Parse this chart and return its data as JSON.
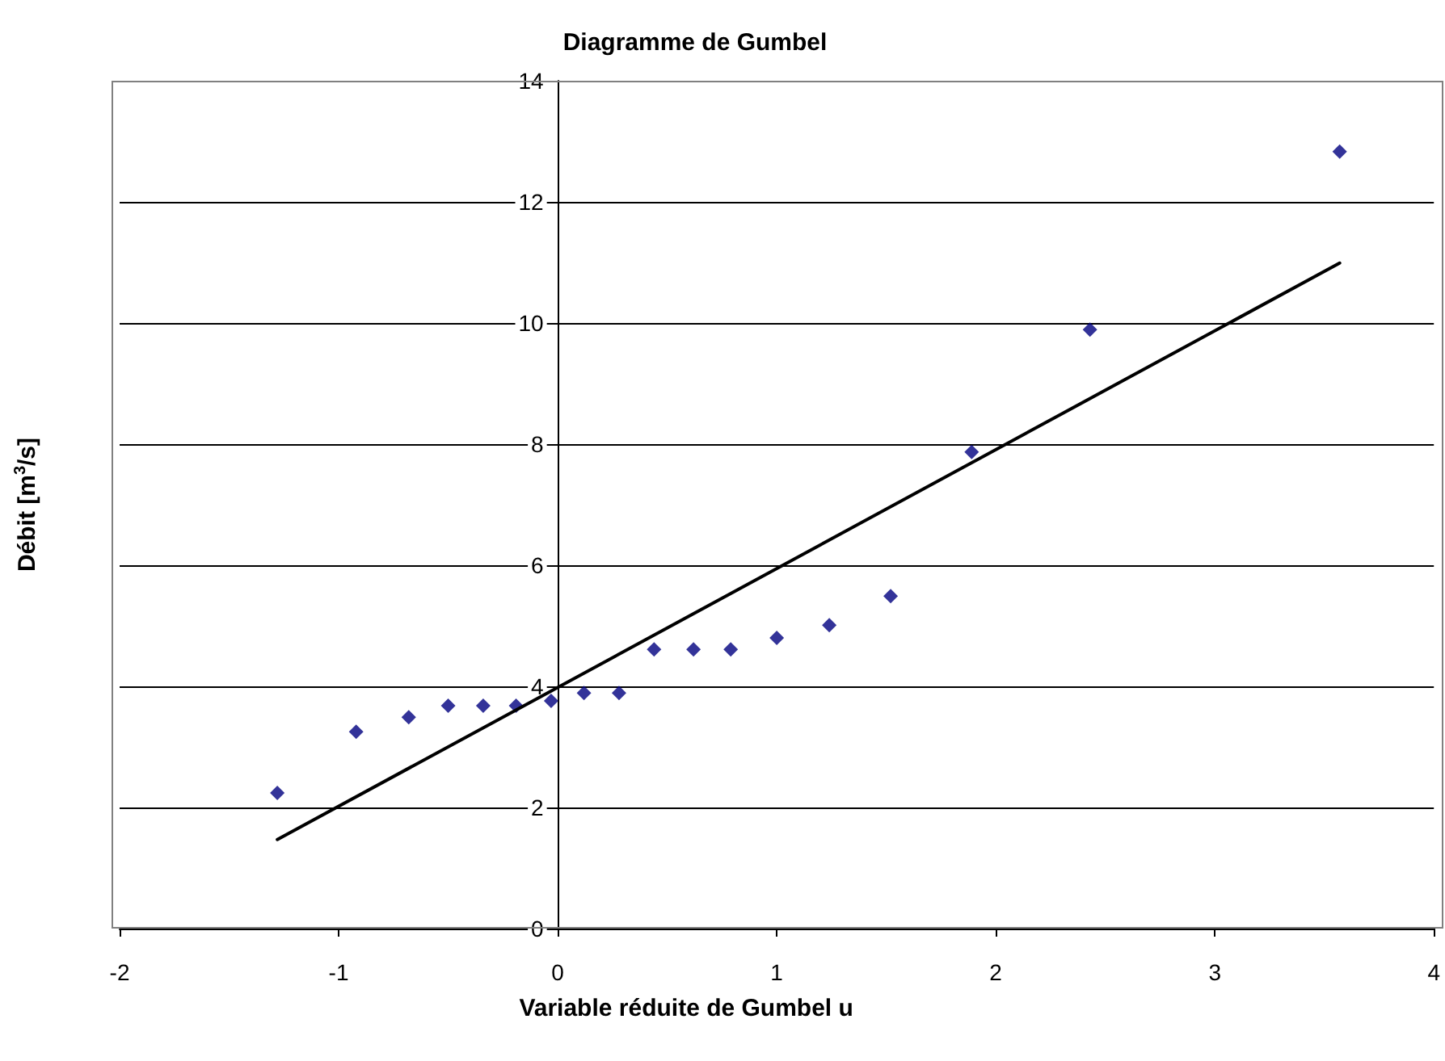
{
  "chart_data": {
    "type": "scatter",
    "title": "Diagramme de Gumbel",
    "xlabel": "Variable réduite de Gumbel u",
    "ylabel": "Débit [m$^{3}$/s]",
    "xlim": [
      -2,
      4
    ],
    "xticks": [
      -2,
      -1,
      0,
      1,
      2,
      3,
      4
    ],
    "ylim": [
      0,
      14
    ],
    "yticks": [
      0,
      2,
      4,
      6,
      8,
      10,
      12,
      14
    ],
    "grid": "y",
    "series": [
      {
        "marker": "diamond",
        "color": "#000080",
        "x": [
          -1.28,
          -0.92,
          -0.68,
          -0.5,
          -0.34,
          -0.19,
          -0.03,
          0.12,
          0.28,
          0.44,
          0.62,
          0.79,
          1.0,
          1.24,
          1.52,
          1.89,
          2.43,
          3.57
        ],
        "values": [
          2.24,
          3.25,
          3.49,
          3.68,
          3.68,
          3.68,
          3.76,
          3.89,
          3.89,
          4.61,
          4.61,
          4.61,
          4.8,
          5.01,
          5.49,
          7.87,
          9.89,
          12.83
        ]
      },
      {
        "type": "line",
        "marker": "none",
        "line_style": "solid",
        "color": "#000000",
        "x": [
          -1.28,
          3.57
        ],
        "values": [
          1.47,
          10.99
        ]
      }
    ]
  }
}
